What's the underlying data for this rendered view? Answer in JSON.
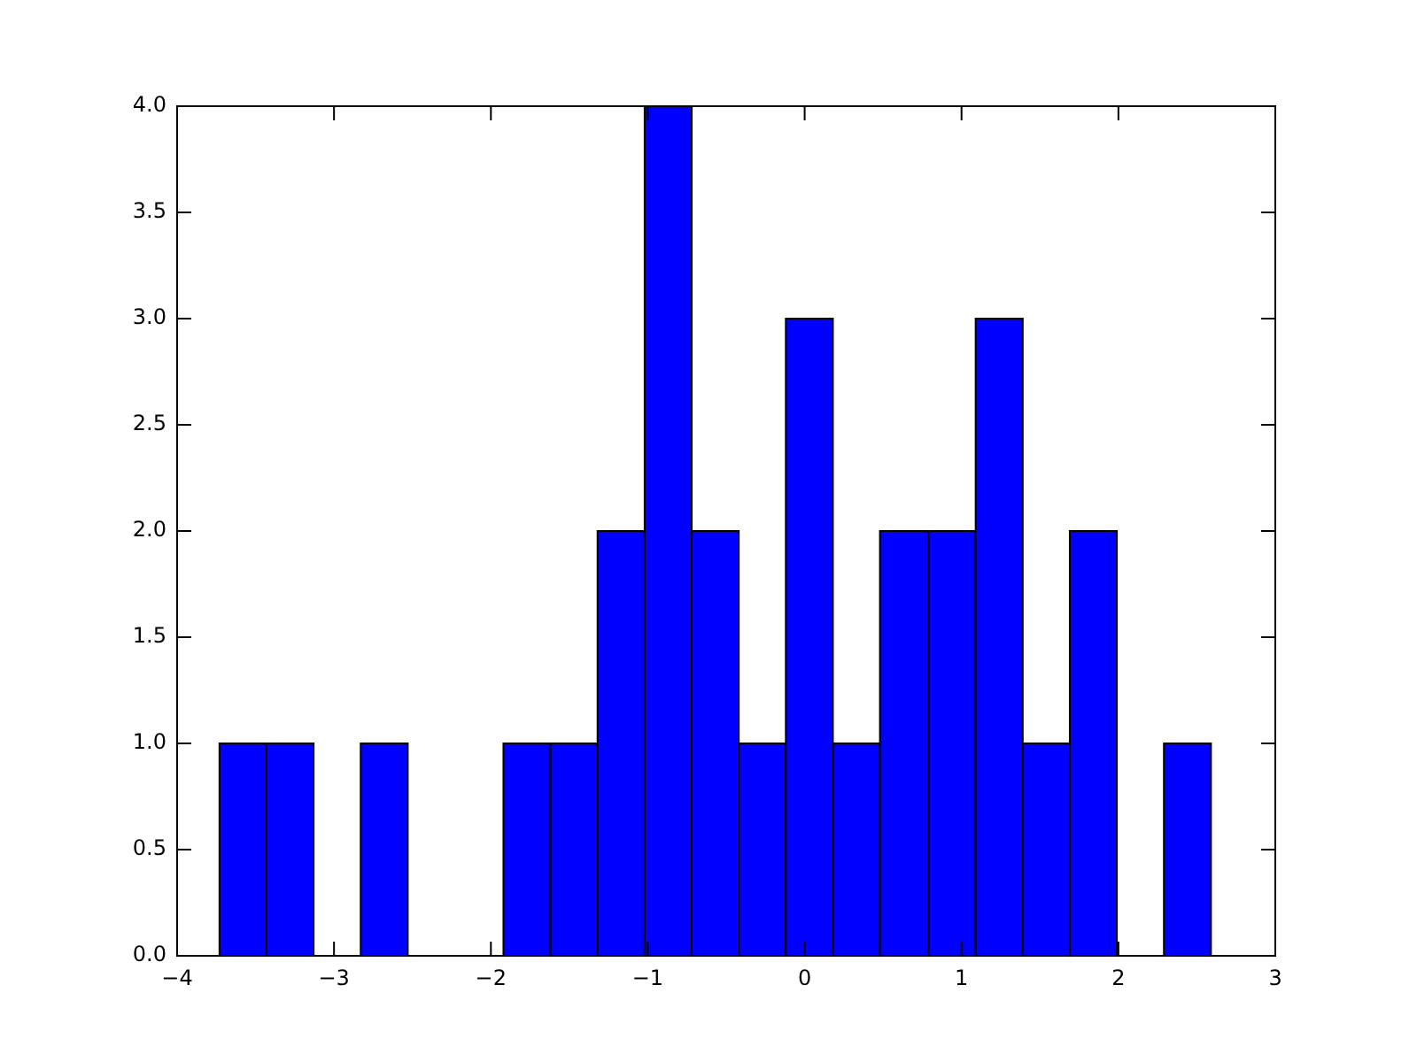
{
  "chart_data": {
    "type": "histogram",
    "bins": [
      -3.73,
      -3.43,
      -3.13,
      -2.83,
      -2.53,
      -1.92,
      -1.62,
      -1.32,
      -1.02,
      -0.72,
      -0.42,
      -0.12,
      0.18,
      0.48,
      0.79,
      1.09,
      1.39,
      1.69,
      1.99,
      2.29,
      2.59
    ],
    "values": [
      1,
      1,
      0,
      1,
      0,
      1,
      1,
      2,
      4,
      2,
      1,
      3,
      1,
      2,
      2,
      3,
      1,
      2,
      0,
      1
    ],
    "color": "#0000ff",
    "xlim": [
      -4,
      3
    ],
    "xticks": [
      {
        "value": -4,
        "label": "−4"
      },
      {
        "value": -3,
        "label": "−3"
      },
      {
        "value": -2,
        "label": "−2"
      },
      {
        "value": -1,
        "label": "−1"
      },
      0,
      1,
      2,
      3
    ],
    "ylim": [
      0,
      4
    ],
    "yticks": [
      {
        "value": 0,
        "label": "0.0"
      },
      {
        "value": 0.5,
        "label": "0.5"
      },
      {
        "value": 1,
        "label": "1.0"
      },
      {
        "value": 1.5,
        "label": "1.5"
      },
      {
        "value": 2,
        "label": "2.0"
      },
      {
        "value": 2.5,
        "label": "2.5"
      },
      {
        "value": 3,
        "label": "3.0"
      },
      {
        "value": 3.5,
        "label": "3.5"
      },
      {
        "value": 4,
        "label": "4.0"
      }
    ],
    "grid": false,
    "legend": false
  }
}
